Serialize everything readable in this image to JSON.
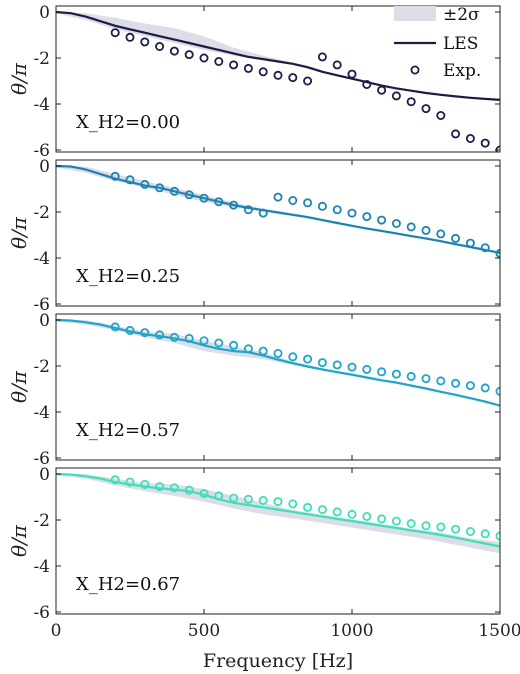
{
  "chart_data": {
    "type": "line",
    "xlabel": "Frequency [Hz]",
    "ylabel": "θ/π",
    "xlim": [
      0,
      1500
    ],
    "ylim": [
      -6,
      0
    ],
    "xticks": [
      0,
      500,
      1000,
      1500
    ],
    "yticks": [
      0,
      -2,
      -4,
      -6
    ],
    "band_color": "#dcdde6",
    "legend": {
      "placement": "top-right",
      "entries": [
        "±2σ",
        "LES",
        "Exp."
      ]
    },
    "panels": [
      {
        "annotation": "X_H2=0.00",
        "color": "#1b1d45",
        "les": {
          "x": [
            0,
            50,
            100,
            150,
            200,
            250,
            300,
            350,
            400,
            450,
            500,
            550,
            600,
            650,
            700,
            750,
            800,
            850,
            900,
            950,
            1000,
            1050,
            1100,
            1150,
            1200,
            1250,
            1300,
            1350,
            1400,
            1450,
            1500
          ],
          "y": [
            0,
            -0.05,
            -0.2,
            -0.4,
            -0.6,
            -0.75,
            -0.9,
            -1.05,
            -1.2,
            -1.35,
            -1.5,
            -1.65,
            -1.8,
            -1.95,
            -2.05,
            -2.15,
            -2.25,
            -2.4,
            -2.6,
            -2.75,
            -2.9,
            -3.05,
            -3.2,
            -3.32,
            -3.42,
            -3.52,
            -3.6,
            -3.67,
            -3.73,
            -3.78,
            -3.82
          ]
        },
        "band": {
          "x": [
            0,
            100,
            200,
            300,
            400,
            500,
            600,
            700,
            800,
            900,
            1000,
            1100,
            1200,
            1300,
            1400,
            1500
          ],
          "lower": [
            -0.05,
            -0.35,
            -0.75,
            -1.05,
            -1.35,
            -1.65,
            -1.9,
            -2.1,
            -2.3,
            -2.65,
            -2.95,
            -3.25,
            -3.45,
            -3.62,
            -3.75,
            -3.85
          ],
          "upper": [
            0.0,
            -0.05,
            -0.25,
            -0.5,
            -0.7,
            -1.05,
            -1.55,
            -1.9,
            -2.2,
            -2.55,
            -2.85,
            -3.15,
            -3.38,
            -3.56,
            -3.7,
            -3.8
          ]
        },
        "exp": {
          "x": [
            200,
            250,
            300,
            350,
            400,
            450,
            500,
            550,
            600,
            650,
            700,
            750,
            800,
            850,
            900,
            950,
            1000,
            1050,
            1100,
            1150,
            1200,
            1250,
            1300,
            1350,
            1400,
            1450,
            1500
          ],
          "y": [
            -0.9,
            -1.1,
            -1.3,
            -1.5,
            -1.7,
            -1.85,
            -2.0,
            -2.15,
            -2.3,
            -2.45,
            -2.6,
            -2.75,
            -2.85,
            -3.0,
            -1.95,
            -2.3,
            -2.7,
            -3.15,
            -3.4,
            -3.65,
            -3.9,
            -4.2,
            -4.5,
            -5.3,
            -5.5,
            -5.7,
            -6.0
          ]
        }
      },
      {
        "annotation": "X_H2=0.25",
        "color": "#1c84b3",
        "les": {
          "x": [
            0,
            50,
            100,
            150,
            200,
            250,
            300,
            350,
            400,
            450,
            500,
            550,
            600,
            650,
            700,
            750,
            800,
            850,
            900,
            950,
            1000,
            1050,
            1100,
            1150,
            1200,
            1250,
            1300,
            1350,
            1400,
            1450,
            1500
          ],
          "y": [
            0,
            -0.02,
            -0.15,
            -0.35,
            -0.55,
            -0.7,
            -0.85,
            -0.95,
            -1.1,
            -1.25,
            -1.4,
            -1.55,
            -1.7,
            -1.82,
            -1.92,
            -2.02,
            -2.12,
            -2.22,
            -2.35,
            -2.48,
            -2.6,
            -2.72,
            -2.82,
            -2.93,
            -3.05,
            -3.15,
            -3.27,
            -3.4,
            -3.52,
            -3.65,
            -3.78
          ]
        },
        "band": {
          "x": [
            0,
            100,
            200,
            300,
            400,
            500,
            600,
            700,
            800,
            900,
            1000,
            1100,
            1200,
            1300,
            1400,
            1500
          ],
          "lower": [
            -0.05,
            -0.3,
            -0.65,
            -0.95,
            -1.25,
            -1.55,
            -1.8,
            -1.98,
            -2.18,
            -2.4,
            -2.65,
            -2.87,
            -3.1,
            -3.32,
            -3.57,
            -3.82
          ],
          "upper": [
            0.0,
            -0.02,
            -0.35,
            -0.65,
            -0.95,
            -1.25,
            -1.6,
            -1.86,
            -2.06,
            -2.3,
            -2.55,
            -2.77,
            -3.0,
            -3.22,
            -3.47,
            -3.72
          ]
        },
        "exp": {
          "x": [
            200,
            250,
            300,
            350,
            400,
            450,
            500,
            550,
            600,
            650,
            700,
            750,
            800,
            850,
            900,
            950,
            1000,
            1050,
            1100,
            1150,
            1200,
            1250,
            1300,
            1350,
            1400,
            1450,
            1500
          ],
          "y": [
            -0.45,
            -0.6,
            -0.8,
            -0.95,
            -1.1,
            -1.25,
            -1.4,
            -1.55,
            -1.7,
            -1.9,
            -2.05,
            -1.35,
            -1.5,
            -1.6,
            -1.75,
            -1.9,
            -2.05,
            -2.2,
            -2.35,
            -2.5,
            -2.65,
            -2.8,
            -2.95,
            -3.15,
            -3.35,
            -3.55,
            -3.8
          ]
        }
      },
      {
        "annotation": "X_H2=0.57",
        "color": "#1ca6c8",
        "les": {
          "x": [
            0,
            50,
            100,
            150,
            200,
            250,
            300,
            350,
            400,
            450,
            500,
            550,
            600,
            650,
            700,
            750,
            800,
            850,
            900,
            950,
            1000,
            1050,
            1100,
            1150,
            1200,
            1250,
            1300,
            1350,
            1400,
            1450,
            1500
          ],
          "y": [
            0,
            -0.02,
            -0.1,
            -0.2,
            -0.35,
            -0.5,
            -0.62,
            -0.7,
            -0.8,
            -0.92,
            -1.1,
            -1.25,
            -1.35,
            -1.4,
            -1.55,
            -1.72,
            -1.88,
            -2.02,
            -2.15,
            -2.27,
            -2.38,
            -2.5,
            -2.62,
            -2.72,
            -2.85,
            -2.98,
            -3.12,
            -3.25,
            -3.4,
            -3.55,
            -3.72
          ]
        },
        "band": {
          "x": [
            0,
            100,
            200,
            300,
            400,
            500,
            600,
            700,
            800,
            900,
            1000,
            1100,
            1200,
            1300,
            1400,
            1500
          ],
          "lower": [
            -0.05,
            -0.2,
            -0.45,
            -0.75,
            -1.0,
            -1.35,
            -1.55,
            -1.7,
            -1.95,
            -2.2,
            -2.43,
            -2.67,
            -2.9,
            -3.17,
            -3.45,
            -3.77
          ],
          "upper": [
            0.0,
            0.0,
            -0.25,
            -0.5,
            -0.6,
            -0.9,
            -1.15,
            -1.4,
            -1.81,
            -2.1,
            -2.33,
            -2.57,
            -2.8,
            -3.07,
            -3.35,
            -3.67
          ]
        },
        "exp": {
          "x": [
            200,
            250,
            300,
            350,
            400,
            450,
            500,
            550,
            600,
            650,
            700,
            750,
            800,
            850,
            900,
            950,
            1000,
            1050,
            1100,
            1150,
            1200,
            1250,
            1300,
            1350,
            1400,
            1450,
            1500
          ],
          "y": [
            -0.3,
            -0.45,
            -0.55,
            -0.65,
            -0.75,
            -0.8,
            -0.9,
            -1.0,
            -1.1,
            -1.25,
            -1.35,
            -1.45,
            -1.6,
            -1.7,
            -1.85,
            -1.95,
            -2.05,
            -2.15,
            -2.25,
            -2.35,
            -2.45,
            -2.55,
            -2.65,
            -2.75,
            -2.85,
            -2.95,
            -3.1
          ]
        }
      },
      {
        "annotation": "X_H2=0.67",
        "color": "#3ce0b8",
        "les": {
          "x": [
            0,
            50,
            100,
            150,
            200,
            250,
            300,
            350,
            400,
            450,
            500,
            550,
            600,
            650,
            700,
            750,
            800,
            850,
            900,
            950,
            1000,
            1050,
            1100,
            1150,
            1200,
            1250,
            1300,
            1350,
            1400,
            1450,
            1500
          ],
          "y": [
            0,
            -0.02,
            -0.1,
            -0.2,
            -0.35,
            -0.45,
            -0.55,
            -0.62,
            -0.68,
            -0.75,
            -0.9,
            -1.1,
            -1.25,
            -1.35,
            -1.45,
            -1.55,
            -1.65,
            -1.75,
            -1.85,
            -1.95,
            -2.05,
            -2.15,
            -2.25,
            -2.35,
            -2.45,
            -2.55,
            -2.65,
            -2.77,
            -2.9,
            -3.02,
            -3.15
          ]
        },
        "band": {
          "x": [
            0,
            100,
            200,
            300,
            400,
            500,
            600,
            700,
            800,
            900,
            1000,
            1100,
            1200,
            1300,
            1400,
            1500
          ],
          "lower": [
            -0.05,
            -0.2,
            -0.5,
            -0.75,
            -0.95,
            -1.2,
            -1.5,
            -1.75,
            -1.93,
            -2.13,
            -2.33,
            -2.53,
            -2.73,
            -2.95,
            -3.2,
            -3.45
          ],
          "upper": [
            0.0,
            0.0,
            -0.2,
            -0.4,
            -0.45,
            -0.65,
            -0.95,
            -1.25,
            -1.57,
            -1.77,
            -1.97,
            -2.17,
            -2.37,
            -2.55,
            -2.8,
            -2.95
          ]
        },
        "exp": {
          "x": [
            200,
            250,
            300,
            350,
            400,
            450,
            500,
            550,
            600,
            650,
            700,
            750,
            800,
            850,
            900,
            950,
            1000,
            1050,
            1100,
            1150,
            1200,
            1250,
            1300,
            1350,
            1400,
            1450,
            1500
          ],
          "y": [
            -0.25,
            -0.35,
            -0.45,
            -0.55,
            -0.6,
            -0.7,
            -0.85,
            -0.95,
            -1.05,
            -1.1,
            -1.15,
            -1.2,
            -1.3,
            -1.45,
            -1.55,
            -1.65,
            -1.75,
            -1.85,
            -1.95,
            -2.05,
            -2.15,
            -2.25,
            -2.3,
            -2.4,
            -2.5,
            -2.6,
            -2.7
          ]
        }
      }
    ]
  }
}
